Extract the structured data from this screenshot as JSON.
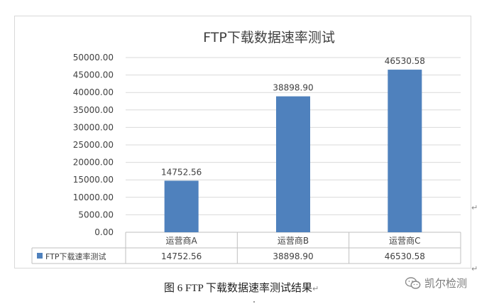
{
  "chart_data": {
    "type": "bar",
    "title": "FTP下载数据速率测试",
    "categories": [
      "运营商A",
      "运营商B",
      "运营商C"
    ],
    "series": [
      {
        "name": "FTP下载速率测试",
        "values": [
          14752.56,
          38898.9,
          46530.58
        ],
        "color": "#4f81bd"
      }
    ],
    "data_labels": [
      "14752.56",
      "38898.90",
      "46530.58"
    ],
    "ylim": [
      0,
      50000
    ],
    "yticks": [
      "0.00",
      "5000.00",
      "10000.00",
      "15000.00",
      "20000.00",
      "25000.00",
      "30000.00",
      "35000.00",
      "40000.00",
      "45000.00",
      "50000.00"
    ],
    "grid": true,
    "legend": "data-table",
    "table_values": [
      "14752.56",
      "38898.90",
      "46530.58"
    ]
  },
  "caption": "图 6  FTP 下载数据速率测试结果",
  "watermark": {
    "text": "凯尔检测",
    "icon": "wechat-icon"
  },
  "para_mark": "↵"
}
